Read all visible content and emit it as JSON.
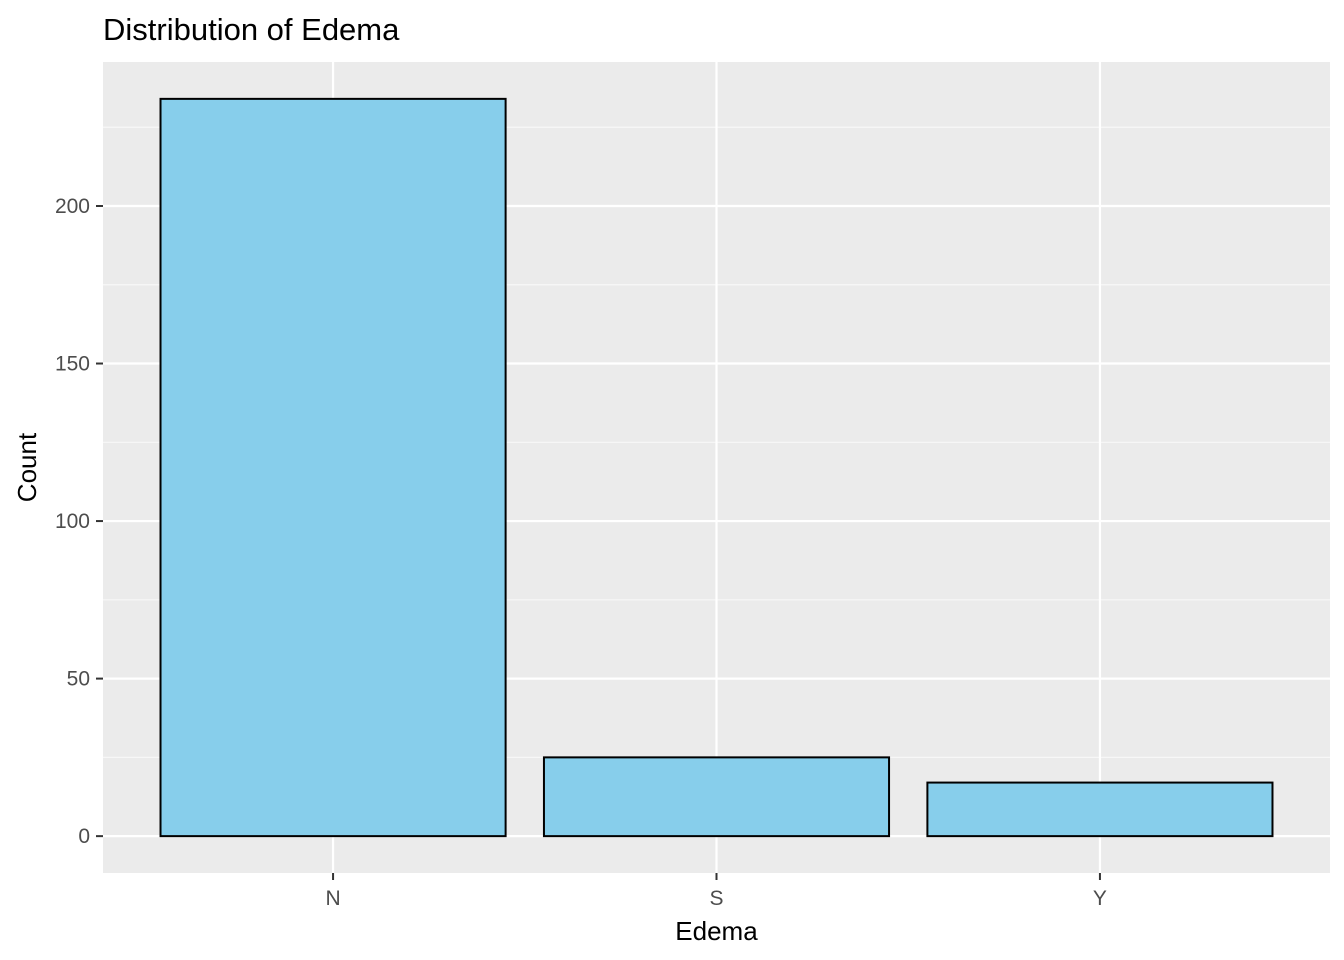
{
  "chart_data": {
    "type": "bar",
    "title": "Distribution of Edema",
    "xlabel": "Edema",
    "ylabel": "Count",
    "categories": [
      "N",
      "S",
      "Y"
    ],
    "values": [
      234,
      25,
      17
    ],
    "ylim": [
      -11.7,
      245.7
    ],
    "yticks": [
      0,
      50,
      100,
      150,
      200
    ],
    "y_minor_ticks": [
      25,
      75,
      125,
      175,
      225
    ],
    "grid": true,
    "legend": "none",
    "colors": {
      "bar_fill": "#87CEEB",
      "bar_stroke": "#000000",
      "panel_bg": "#EBEBEB",
      "grid_major": "#FFFFFF",
      "grid_minor": "#F7F7F7",
      "tick": "#333333"
    }
  }
}
